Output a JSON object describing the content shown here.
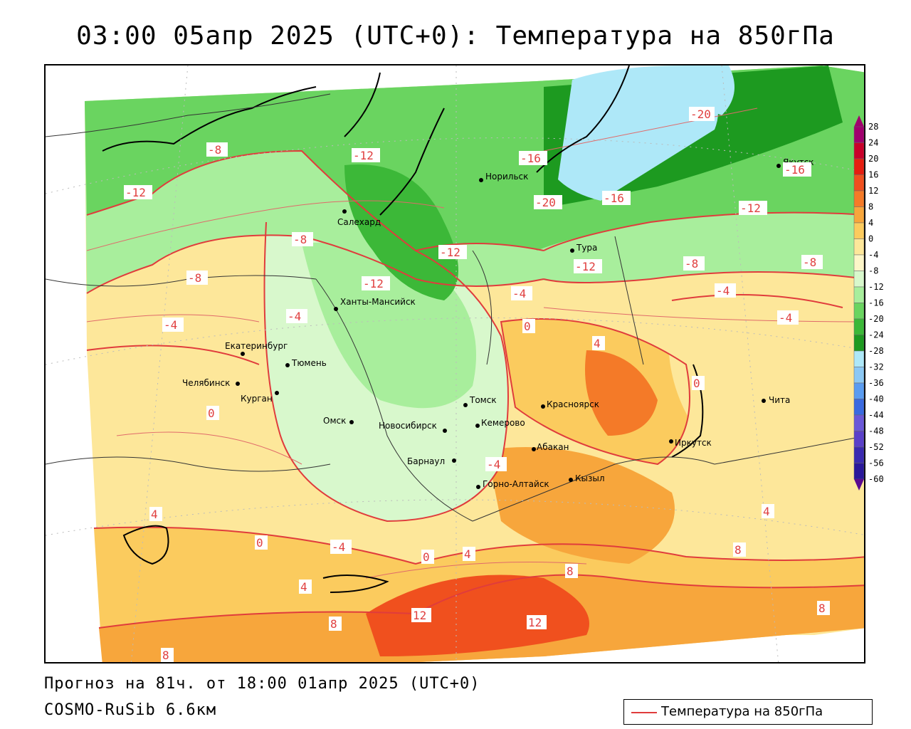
{
  "title": "03:00 05апр 2025 (UTC+0): Температура на 850гПа",
  "footer": {
    "forecast": "Прогноз на 81ч. от 18:00 01апр 2025 (UTC+0)",
    "model": "COSMO-RuSib 6.6км"
  },
  "legend": {
    "label": "Температура на 850гПа",
    "line_color": "#e03c3c"
  },
  "colorbar": {
    "labels": [
      "28",
      "24",
      "20",
      "16",
      "12",
      "8",
      "4",
      "0",
      "-4",
      "-8",
      "-12",
      "-16",
      "-20",
      "-24",
      "-28",
      "-32",
      "-36",
      "-40",
      "-44",
      "-48",
      "-52",
      "-56",
      "-60"
    ],
    "colors": [
      "#a0006e",
      "#c8002a",
      "#e51e10",
      "#f0501e",
      "#f47a28",
      "#f7a63c",
      "#fbcb5e",
      "#fde79a",
      "#fdf6c8",
      "#d8f8cc",
      "#a8ee9c",
      "#6ad460",
      "#3cb838",
      "#1d9a20",
      "#aee8f8",
      "#8cc8f4",
      "#5a9cf0",
      "#3a6ae0",
      "#6a58d8",
      "#5a40c8",
      "#3a2ab0",
      "#2a189a",
      "#5a0a90"
    ]
  },
  "cities": [
    {
      "name": "Якутск"
    },
    {
      "name": "Норильск"
    },
    {
      "name": "Салехард"
    },
    {
      "name": "Тура"
    },
    {
      "name": "Ханты-Мансийск"
    },
    {
      "name": "Екатеринбург"
    },
    {
      "name": "Тюмень"
    },
    {
      "name": "Челябинск"
    },
    {
      "name": "Курган"
    },
    {
      "name": "Омск"
    },
    {
      "name": "Новосибирск"
    },
    {
      "name": "Томск"
    },
    {
      "name": "Кемерово"
    },
    {
      "name": "Красноярск"
    },
    {
      "name": "Барнаул"
    },
    {
      "name": "Абакан"
    },
    {
      "name": "Горно-Алтайск"
    },
    {
      "name": "Кызыл"
    },
    {
      "name": "Иркутск"
    },
    {
      "name": "Чита"
    }
  ],
  "isotherm_labels": [
    "-20",
    "-16",
    "-12",
    "-8",
    "-4",
    "0",
    "4",
    "8",
    "12"
  ],
  "colors": {
    "isotherm": "#e03c3c",
    "frame": "#000000"
  }
}
